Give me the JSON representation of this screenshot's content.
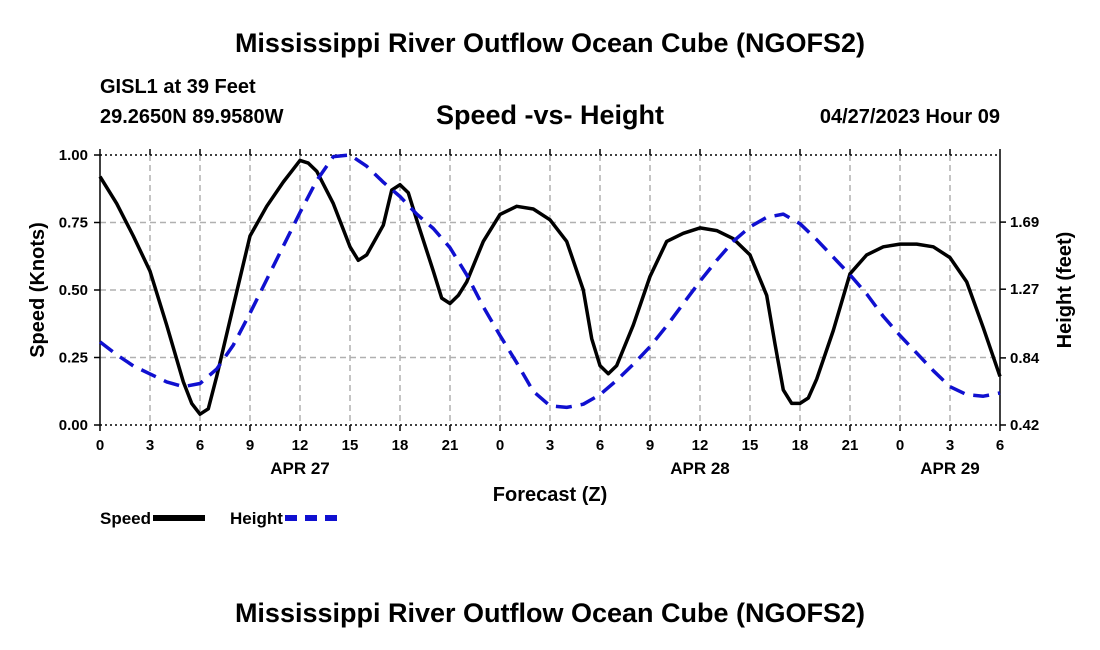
{
  "header": {
    "title": "Mississippi River Outflow Ocean Cube (NGOFS2)",
    "station": "GISL1 at 39 Feet",
    "coordinates": "29.2650N  89.9580W",
    "subtitle": "Speed -vs- Height",
    "datetime": "04/27/2023 Hour 09"
  },
  "footer": {
    "title": "Mississippi River Outflow Ocean Cube (NGOFS2)"
  },
  "legend": {
    "speed_label": "Speed",
    "height_label": "Height"
  },
  "colors": {
    "speed": "#000000",
    "height": "#1010d0",
    "grid": "#b0b0b0"
  },
  "chart_data": {
    "type": "line",
    "xlabel": "Forecast (Z)",
    "ylabel": "Speed (Knots)",
    "y2label": "Height (feet)",
    "xlim": [
      0,
      54
    ],
    "ylim": [
      0,
      1
    ],
    "y2lim": [
      0.42,
      2.11
    ],
    "x_ticks": [
      0,
      3,
      6,
      9,
      12,
      15,
      18,
      21,
      24,
      27,
      30,
      33,
      36,
      39,
      42,
      45,
      48,
      51,
      54
    ],
    "x_tick_labels": [
      "0",
      "3",
      "6",
      "9",
      "12",
      "15",
      "18",
      "21",
      "0",
      "3",
      "6",
      "9",
      "12",
      "15",
      "18",
      "21",
      "0",
      "3",
      "6"
    ],
    "y_ticks": [
      0,
      0.25,
      0.5,
      0.75,
      1.0
    ],
    "y_tick_labels": [
      "0.00",
      "0.25",
      "0.50",
      "0.75",
      "1.00"
    ],
    "y2_ticks": [
      0.42,
      0.84,
      1.27,
      1.69
    ],
    "y2_tick_labels": [
      "0.42",
      "0.84",
      "1.27",
      "1.69"
    ],
    "date_labels": [
      {
        "x": 12,
        "label": "APR 27"
      },
      {
        "x": 36,
        "label": "APR 28"
      },
      {
        "x": 51,
        "label": "APR 29"
      }
    ],
    "series": [
      {
        "name": "Speed",
        "axis": "left",
        "style": "solid",
        "x": [
          0,
          1,
          2,
          3,
          4,
          5,
          5.5,
          6,
          6.5,
          7,
          8,
          9,
          10,
          11,
          11.5,
          12,
          12.5,
          13,
          14,
          15,
          15.5,
          16,
          17,
          17.5,
          18,
          18.5,
          19,
          20,
          20.5,
          21,
          21.5,
          22,
          23,
          24,
          25,
          26,
          27,
          28,
          29,
          29.5,
          30,
          30.5,
          31,
          32,
          33,
          34,
          35,
          36,
          37,
          38,
          39,
          40,
          40.5,
          41,
          41.5,
          42,
          42.5,
          43,
          44,
          45,
          46,
          47,
          48,
          49,
          50,
          51,
          52,
          53,
          54
        ],
        "values": [
          0.92,
          0.82,
          0.7,
          0.57,
          0.37,
          0.16,
          0.08,
          0.04,
          0.06,
          0.18,
          0.44,
          0.7,
          0.81,
          0.9,
          0.94,
          0.98,
          0.97,
          0.94,
          0.82,
          0.66,
          0.61,
          0.63,
          0.74,
          0.87,
          0.89,
          0.86,
          0.76,
          0.57,
          0.47,
          0.45,
          0.48,
          0.53,
          0.68,
          0.78,
          0.81,
          0.8,
          0.76,
          0.68,
          0.5,
          0.32,
          0.22,
          0.19,
          0.22,
          0.37,
          0.55,
          0.68,
          0.71,
          0.73,
          0.72,
          0.69,
          0.63,
          0.48,
          0.3,
          0.13,
          0.08,
          0.08,
          0.1,
          0.17,
          0.35,
          0.56,
          0.63,
          0.66,
          0.67,
          0.67,
          0.66,
          0.62,
          0.53,
          0.36,
          0.18
        ]
      },
      {
        "name": "Height",
        "axis": "right",
        "style": "dashed",
        "x": [
          0,
          1,
          2,
          3,
          4,
          5,
          6,
          7,
          8,
          9,
          10,
          11,
          12,
          13,
          14,
          15,
          16,
          17,
          18,
          19,
          20,
          21,
          22,
          23,
          24,
          25,
          26,
          27,
          28,
          29,
          30,
          31,
          32,
          33,
          34,
          35,
          36,
          37,
          38,
          39,
          40,
          41,
          42,
          43,
          44,
          45,
          46,
          47,
          48,
          49,
          50,
          51,
          52,
          53,
          54
        ],
        "values": [
          0.94,
          0.86,
          0.79,
          0.74,
          0.69,
          0.66,
          0.68,
          0.77,
          0.92,
          1.12,
          1.33,
          1.54,
          1.75,
          1.95,
          2.1,
          2.11,
          2.04,
          1.94,
          1.85,
          1.74,
          1.65,
          1.53,
          1.36,
          1.16,
          0.98,
          0.81,
          0.63,
          0.54,
          0.53,
          0.55,
          0.61,
          0.7,
          0.8,
          0.91,
          1.04,
          1.18,
          1.32,
          1.45,
          1.57,
          1.66,
          1.72,
          1.74,
          1.68,
          1.58,
          1.47,
          1.36,
          1.24,
          1.1,
          0.98,
          0.87,
          0.76,
          0.66,
          0.61,
          0.6,
          0.62
        ]
      }
    ]
  }
}
